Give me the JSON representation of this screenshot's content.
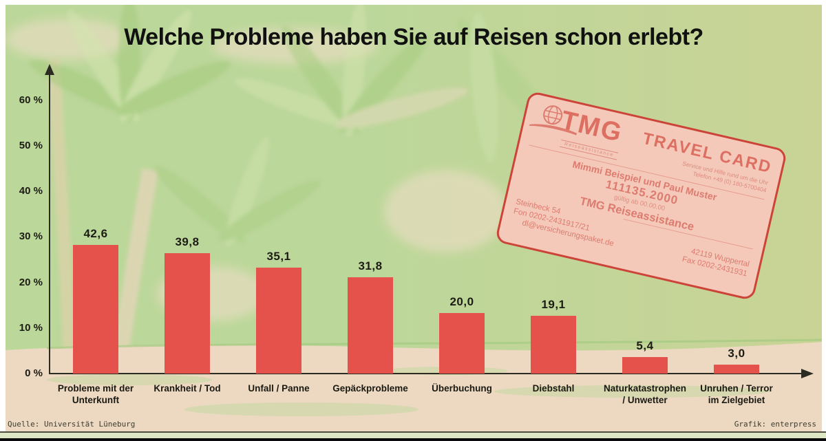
{
  "chart_data": {
    "type": "bar",
    "title": "Welche Probleme haben Sie auf Reisen schon erlebt?",
    "categories": [
      "Probleme mit der Unterkunft",
      "Krankheit / Tod",
      "Unfall / Panne",
      "Gepäckprobleme",
      "Überbuchung",
      "Diebstahl",
      "Naturkatastrophen / Unwetter",
      "Unruhen / Terror im Zielgebiet"
    ],
    "category_lines": [
      [
        "Probleme mit der",
        "Unterkunft"
      ],
      [
        "Krankheit / Tod"
      ],
      [
        "Unfall / Panne"
      ],
      [
        "Gepäckprobleme"
      ],
      [
        "Überbuchung"
      ],
      [
        "Diebstahl"
      ],
      [
        "Naturkatastrophen",
        "/ Unwetter"
      ],
      [
        "Unruhen / Terror",
        "im Zielgebiet"
      ]
    ],
    "values": [
      42.6,
      39.8,
      35.1,
      31.8,
      20.0,
      19.1,
      5.4,
      3.0
    ],
    "value_labels": [
      "42,6",
      "39,8",
      "35,1",
      "31,8",
      "20,0",
      "19,1",
      "5,4",
      "3,0"
    ],
    "unit": "%",
    "yticks": [
      0,
      10,
      20,
      30,
      40,
      50,
      60
    ],
    "ytick_labels": [
      "0 %",
      "10 %",
      "20 %",
      "30 %",
      "40 %",
      "50 %",
      "60 %"
    ],
    "ylim": [
      0,
      65
    ],
    "grid": false,
    "legend": null,
    "bar_color": "#e5524b"
  },
  "card": {
    "brand": "TMG",
    "brand_sub": "Reiseassistance",
    "product": "TRAVEL CARD",
    "service_line1": "Service und Hilfe rund um die Uhr",
    "service_line2": "Telefon +49 (0) 180-5700404",
    "holder": "Mimmi Beispiel und Paul Muster",
    "number": "111135.2000",
    "valid": "gültig ab 00.00.00",
    "company": "TMG Reiseassistance",
    "address1": "Steinbeck 54",
    "address2": "42119 Wuppertal",
    "fon": "Fon 0202-2431917/21",
    "fax": "Fax 0202-2431931",
    "email": "dl@versicherungspaket.de"
  },
  "footer": {
    "source": "Quelle: Universität Lüneburg",
    "credit": "Grafik: enterpress"
  },
  "colors": {
    "bar": "#e5524b",
    "background_green": "#bcd79a",
    "sand": "#edd9c2",
    "card_background": "#f7c8bc",
    "card_border": "#cc4338",
    "card_text": "#dd7b6f",
    "title_text": "#111111"
  }
}
